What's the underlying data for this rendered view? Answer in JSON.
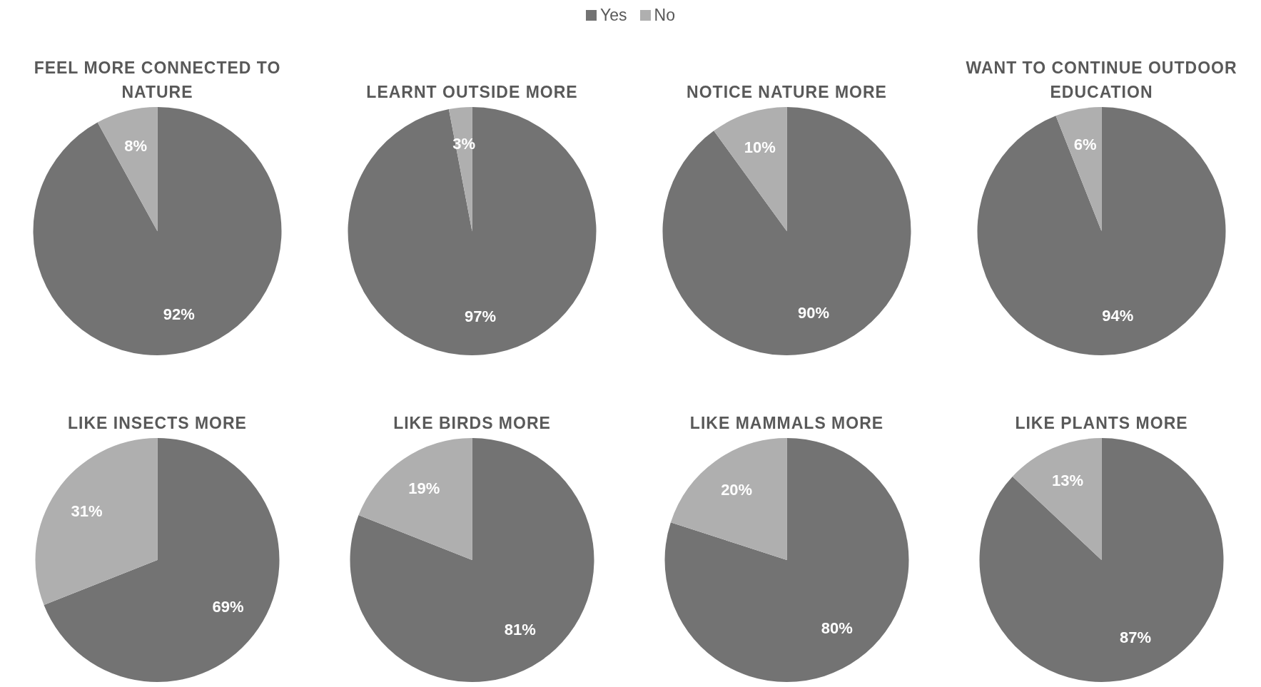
{
  "chart_data": [
    {
      "type": "pie",
      "title": "FEEL MORE CONNECTED TO NATURE",
      "categories": [
        "Yes",
        "No"
      ],
      "values": [
        92,
        8
      ],
      "value_labels": [
        "92%",
        "8%"
      ],
      "colors": [
        "#737373",
        "#afafaf"
      ],
      "legend": "top"
    },
    {
      "type": "pie",
      "title": "LEARNT OUTSIDE MORE",
      "categories": [
        null,
        null
      ],
      "values": [
        97,
        3
      ],
      "value_labels": [
        "97%",
        "3%"
      ],
      "colors": [
        "#737373",
        "#afafaf"
      ]
    },
    {
      "type": "pie",
      "title": "NOTICE NATURE MORE",
      "categories": [
        null,
        null
      ],
      "values": [
        90,
        10
      ],
      "value_labels": [
        "90%",
        "10%"
      ],
      "colors": [
        "#737373",
        "#afafaf"
      ]
    },
    {
      "type": "pie",
      "title": "WANT TO CONTINUE OUTDOOR EDUCATION",
      "categories": [
        null,
        null
      ],
      "values": [
        94,
        6
      ],
      "value_labels": [
        "94%",
        "6%"
      ],
      "colors": [
        "#737373",
        "#afafaf"
      ]
    },
    {
      "type": "pie",
      "title": "LIKE INSECTS MORE",
      "categories": [
        null,
        null
      ],
      "values": [
        69,
        31
      ],
      "value_labels": [
        "69%",
        "31%"
      ],
      "colors": [
        "#737373",
        "#afafaf"
      ]
    },
    {
      "type": "pie",
      "title": "LIKE BIRDS MORE",
      "categories": [
        null,
        null
      ],
      "values": [
        81,
        19
      ],
      "value_labels": [
        "81%",
        "19%"
      ],
      "colors": [
        "#737373",
        "#afafaf"
      ]
    },
    {
      "type": "pie",
      "title": "LIKE MAMMALS MORE",
      "categories": [
        null,
        null
      ],
      "values": [
        80,
        20
      ],
      "value_labels": [
        "80%",
        "20%"
      ],
      "colors": [
        "#737373",
        "#afafaf"
      ]
    },
    {
      "type": "pie",
      "title": "LIKE PLANTS MORE",
      "categories": [
        null,
        null
      ],
      "values": [
        87,
        13
      ],
      "value_labels": [
        "87%",
        "13%"
      ],
      "colors": [
        "#737373",
        "#afafaf"
      ]
    }
  ]
}
